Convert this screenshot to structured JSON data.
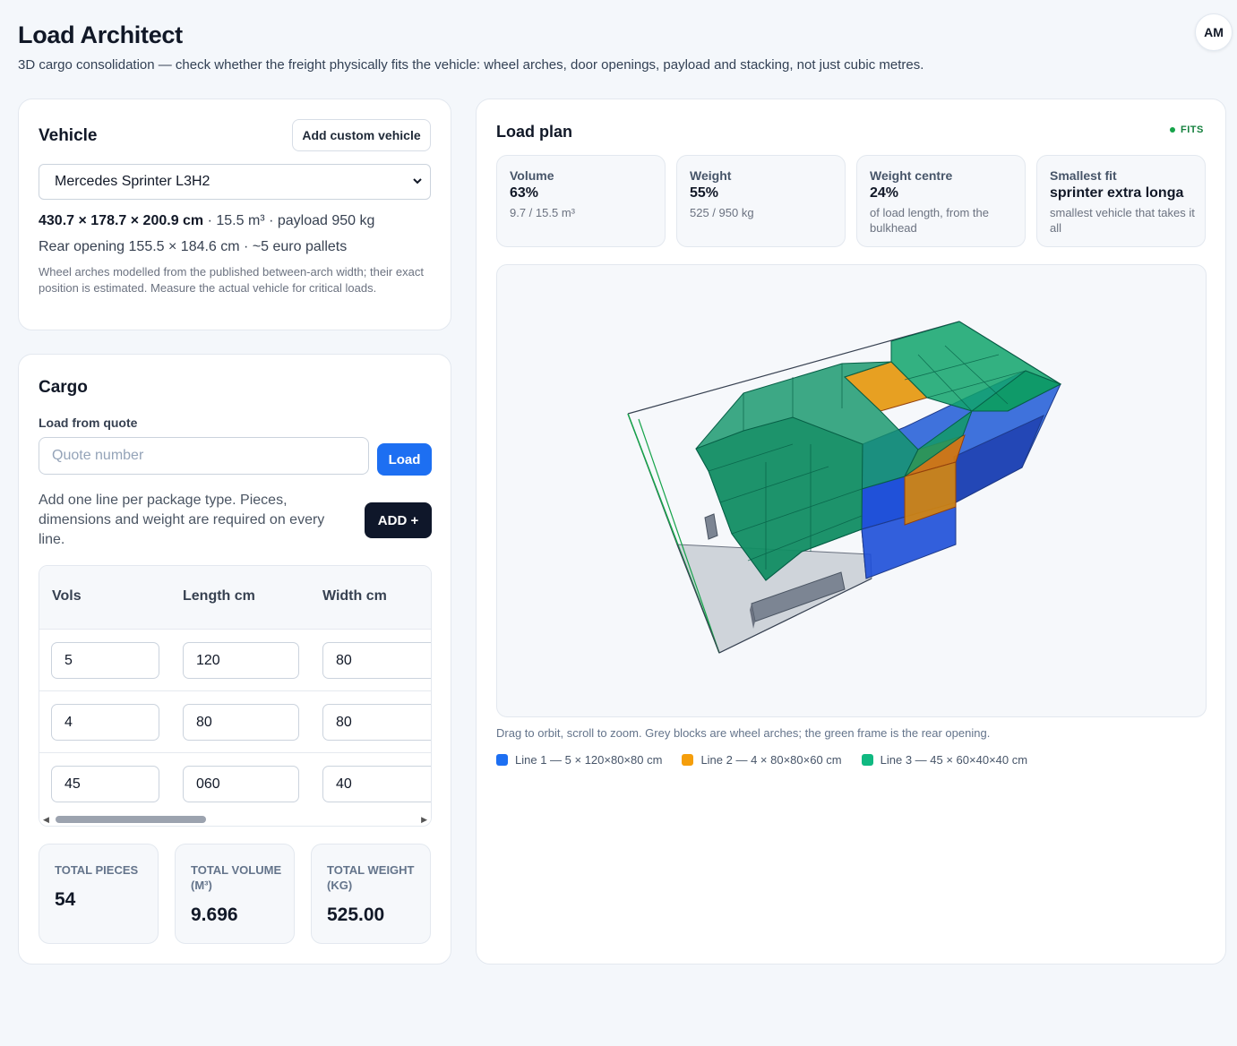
{
  "header": {
    "title": "Load Architect",
    "subtitle": "3D cargo consolidation — check whether the freight physically fits the vehicle: wheel arches, door openings, payload and stacking, not just cubic metres.",
    "avatar_initials": "AM"
  },
  "vehicle": {
    "title": "Vehicle",
    "add_custom_label": "Add custom vehicle",
    "selected": "Mercedes Sprinter L3H2",
    "dimensions": "430.7 × 178.7 × 200.9 cm",
    "volume": "· 15.5 m³",
    "payload": "· payload 950 kg",
    "rear_opening": "Rear opening 155.5 × 184.6 cm · ~5 euro pallets",
    "note": "Wheel arches modelled from the published between-arch width; their exact position is estimated. Measure the actual vehicle for critical loads."
  },
  "cargo": {
    "title": "Cargo",
    "quote_label": "Load from quote",
    "quote_placeholder": "Quote number",
    "load_label": "Load",
    "help": "Add one line per package type. Pieces, dimensions and weight are required on every line.",
    "add_label": "ADD +",
    "columns": [
      "Vols",
      "Length cm",
      "Width cm"
    ],
    "rows": [
      [
        "5",
        "120",
        "80"
      ],
      [
        "4",
        "80",
        "80"
      ],
      [
        "45",
        "060",
        "40"
      ]
    ],
    "totals": {
      "pieces_label": "TOTAL PIECES",
      "pieces_value": "54",
      "volume_label": "TOTAL VOLUME (M³)",
      "volume_value": "9.696",
      "weight_label": "TOTAL WEIGHT (KG)",
      "weight_value": "525.00"
    }
  },
  "plan": {
    "title": "Load plan",
    "status": "FITS",
    "metrics": [
      {
        "label": "Volume",
        "value": "63%",
        "sub": "9.7 / 15.5 m³"
      },
      {
        "label": "Weight",
        "value": "55%",
        "sub": "525 / 950 kg"
      },
      {
        "label": "Weight centre",
        "value": "24%",
        "sub": "of load length, from the bulkhead"
      },
      {
        "label": "Smallest fit",
        "value": "sprinter extra longa",
        "sub": "smallest vehicle that takes it all"
      }
    ],
    "caption": "Drag to orbit, scroll to zoom. Grey blocks are wheel arches; the green frame is the rear opening.",
    "legend": [
      {
        "label": "Line 1 — 5 × 120×80×80 cm",
        "color": "#1d6ff2"
      },
      {
        "label": "Line 2 — 4 × 80×80×60 cm",
        "color": "#f59e0b"
      },
      {
        "label": "Line 3 — 45 × 60×40×40 cm",
        "color": "#10b981"
      }
    ]
  }
}
